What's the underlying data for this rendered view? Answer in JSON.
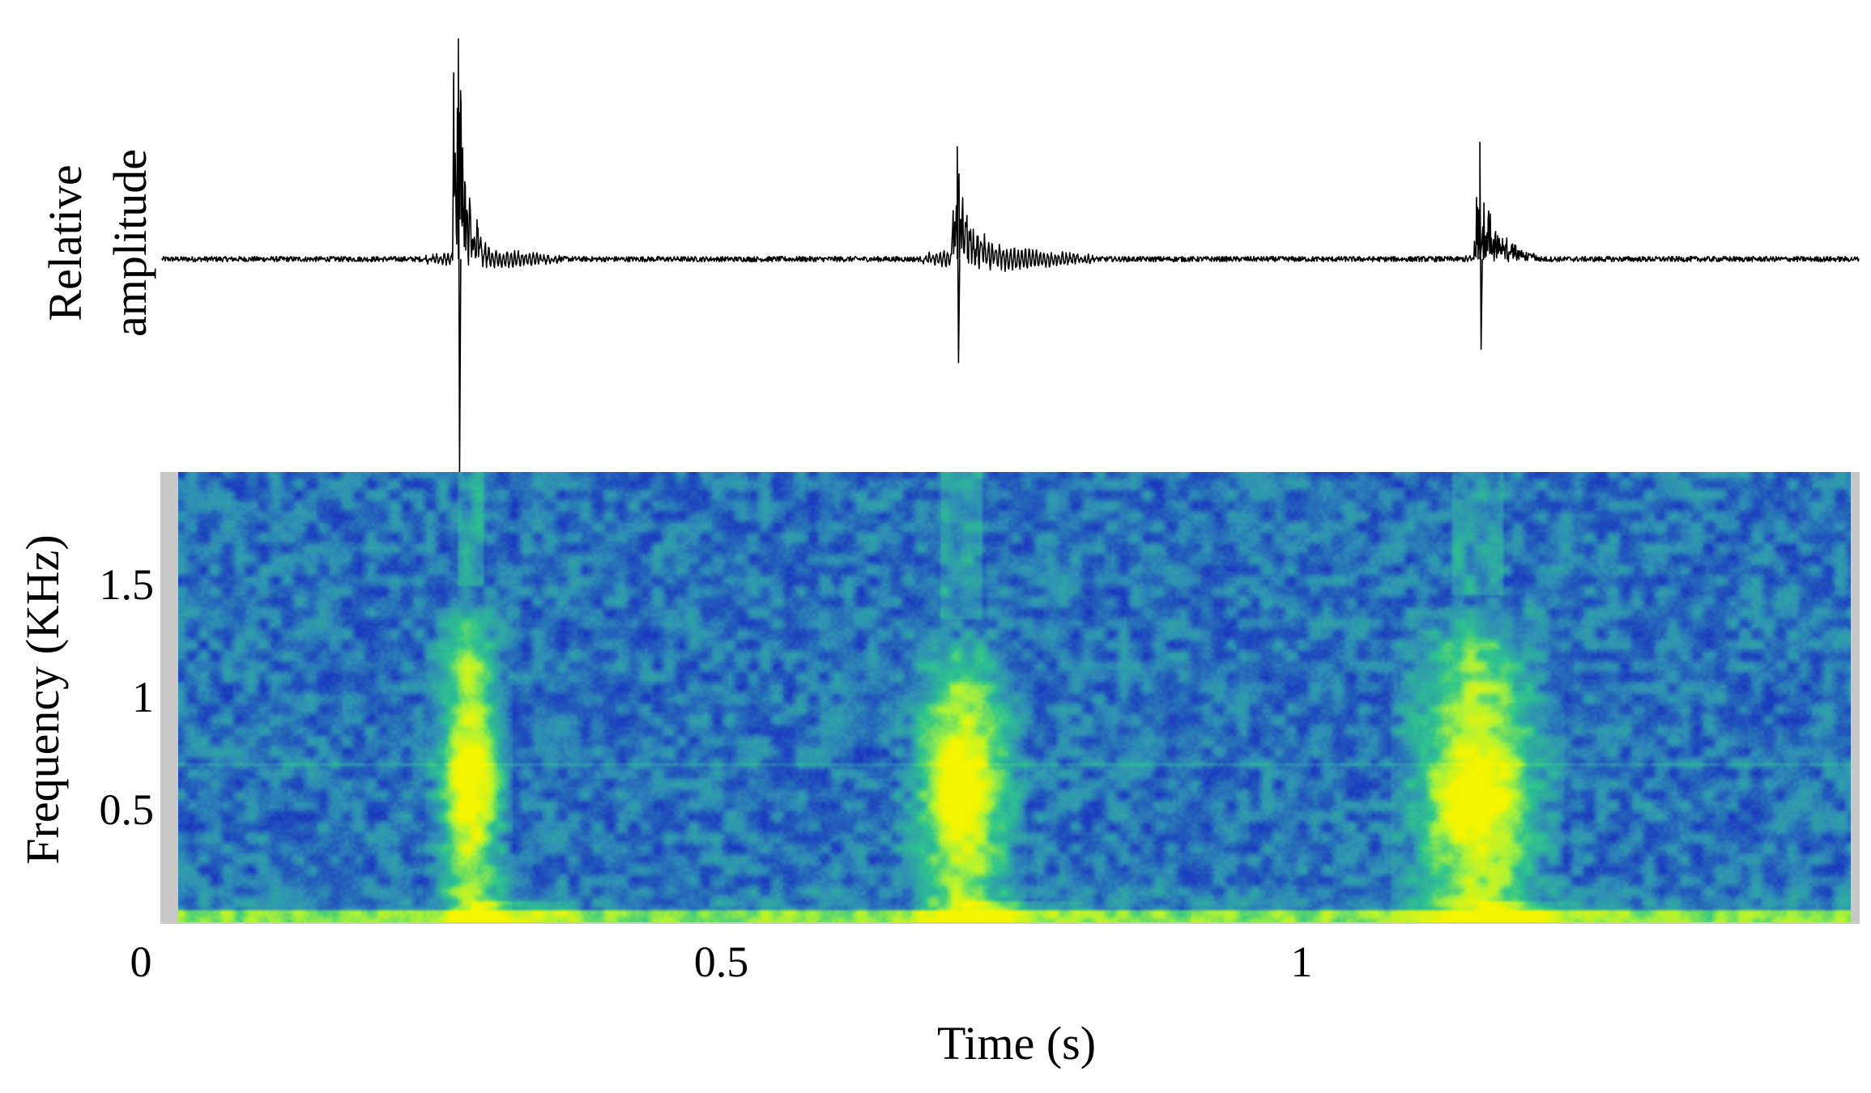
{
  "chart_data": [
    {
      "type": "line",
      "panel": "waveform",
      "title": "",
      "xlabel": "",
      "ylabel": "Relative amplitude",
      "ylabel_lines": [
        "Relative",
        "amplitude"
      ],
      "xlim": [
        0,
        1.5
      ],
      "ylim": [
        -1,
        1
      ],
      "baseline": 0,
      "stroke_color": "#000000",
      "noise_level": 0.012,
      "bursts": [
        {
          "time": 0.262,
          "peak_max": 1.0,
          "peak_min": -0.97,
          "duration": 0.028,
          "ringing_duration": 0.09,
          "ringing_amplitude": 0.035
        },
        {
          "time": 0.703,
          "peak_max": 0.51,
          "peak_min": -0.47,
          "duration": 0.04,
          "ringing_duration": 0.12,
          "ringing_amplitude": 0.045
        },
        {
          "time": 1.165,
          "peak_max": 0.53,
          "peak_min": -0.41,
          "duration": 0.05,
          "ringing_duration": 0.03,
          "ringing_amplitude": 0.02
        }
      ]
    },
    {
      "type": "heatmap",
      "panel": "spectrogram",
      "title": "",
      "xlabel": "Time (s)",
      "ylabel": "Frequency (KHz)",
      "xlim": [
        0,
        1.5
      ],
      "ylim": [
        0,
        2.0
      ],
      "x_ticks": [
        {
          "value": 0,
          "label": "0"
        },
        {
          "value": 0.5,
          "label": "0.5"
        },
        {
          "value": 1,
          "label": "1"
        }
      ],
      "y_ticks": [
        {
          "value": 0.5,
          "label": "0.5"
        },
        {
          "value": 1,
          "label": "1"
        },
        {
          "value": 1.5,
          "label": "1.5"
        }
      ],
      "colormap": [
        "#00006a",
        "#1a36c0",
        "#2f8fb5",
        "#2ec58d",
        "#a8f23a",
        "#f4f500"
      ],
      "frame_color": "#c8c8c8",
      "calls": [
        {
          "time": 0.262,
          "width": 0.03,
          "max_frequency": 1.5,
          "peak_frequency": 0.6
        },
        {
          "time": 0.703,
          "width": 0.045,
          "max_frequency": 1.35,
          "peak_frequency": 0.6
        },
        {
          "time": 1.165,
          "width": 0.06,
          "max_frequency": 1.45,
          "peak_frequency": 0.55
        }
      ]
    }
  ]
}
